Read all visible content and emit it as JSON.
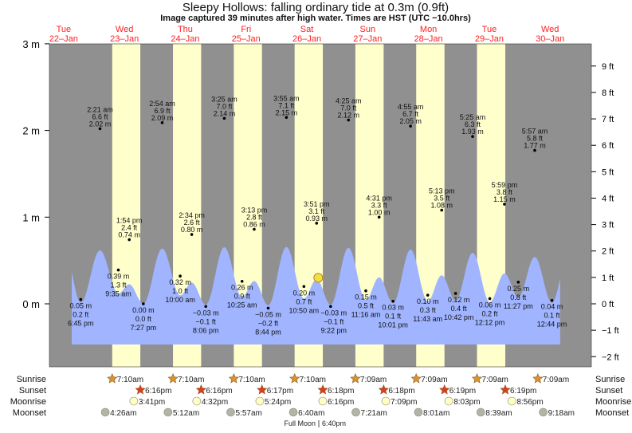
{
  "header": {
    "title": "Sleepy Hollows: falling  ordinary tide at 0.3m (0.9ft)",
    "subtitle": "Image captured 39 minutes after high water. Times are HST (UTC −10.0hrs)"
  },
  "colors": {
    "night": "#909090",
    "day": "#ffffcc",
    "water": "#a0b4ff",
    "day_label": "#ff2020",
    "sunrise": "#e0902c",
    "sunset": "#e03a20",
    "moonrise": "#ffffc0",
    "moonset": "#b4b4a4",
    "marker": "#f0e040"
  },
  "chart_data": {
    "type": "area",
    "title": "Sleepy Hollows: falling  ordinary tide at 0.3m (0.9ft)",
    "ylabel_left": "m",
    "ylabel_right": "ft",
    "ylim_m": [
      -0.73,
      3
    ],
    "yticks_m": [
      "3 m",
      "2 m",
      "1 m",
      "0 m"
    ],
    "yticks_m_values": [
      3,
      2,
      1,
      0
    ],
    "yticks_ft": [
      "9 ft",
      "8 ft",
      "7 ft",
      "6 ft",
      "5 ft",
      "4 ft",
      "3 ft",
      "2 ft",
      "1 ft",
      "0 ft",
      "−1 ft",
      "−2 ft"
    ],
    "yticks_ft_values": [
      9,
      8,
      7,
      6,
      5,
      4,
      3,
      2,
      1,
      0,
      -1,
      -2
    ],
    "days": [
      {
        "name": "Tue",
        "date": "22–Jan"
      },
      {
        "name": "Wed",
        "date": "23–Jan"
      },
      {
        "name": "Thu",
        "date": "24–Jan"
      },
      {
        "name": "Fri",
        "date": "25–Jan"
      },
      {
        "name": "Sat",
        "date": "26–Jan"
      },
      {
        "name": "Sun",
        "date": "27–Jan"
      },
      {
        "name": "Mon",
        "date": "28–Jan"
      },
      {
        "name": "Tue",
        "date": "29–Jan"
      },
      {
        "name": "Wed",
        "date": "30–Jan"
      }
    ],
    "extremes": [
      {
        "type": "low",
        "day": 0,
        "time": "6:45 pm",
        "m": "0.05 m",
        "ft": "0.2 ft",
        "value": 0.05
      },
      {
        "type": "high",
        "day": 1,
        "time": "2:21 am",
        "m": "2.02 m",
        "ft": "6.6 ft",
        "value": 2.02
      },
      {
        "type": "low",
        "day": 1,
        "time": "9:35 am",
        "m": "0.39 m",
        "ft": "1.3 ft",
        "value": 0.39
      },
      {
        "type": "high",
        "day": 1,
        "time": "1:54 pm",
        "m": "0.74 m",
        "ft": "2.4 ft",
        "value": 0.74
      },
      {
        "type": "low",
        "day": 1,
        "time": "7:27 pm",
        "m": "0.00 m",
        "ft": "0.0 ft",
        "value": 0.0
      },
      {
        "type": "high",
        "day": 2,
        "time": "2:54 am",
        "m": "2.09 m",
        "ft": "6.9 ft",
        "value": 2.09
      },
      {
        "type": "low",
        "day": 2,
        "time": "10:00 am",
        "m": "0.32 m",
        "ft": "1.0 ft",
        "value": 0.32
      },
      {
        "type": "high",
        "day": 2,
        "time": "2:34 pm",
        "m": "0.80 m",
        "ft": "2.6 ft",
        "value": 0.8
      },
      {
        "type": "low",
        "day": 2,
        "time": "8:06 pm",
        "m": "−0.03 m",
        "ft": "−0.1 ft",
        "value": -0.03
      },
      {
        "type": "high",
        "day": 3,
        "time": "3:25 am",
        "m": "2.14 m",
        "ft": "7.0 ft",
        "value": 2.14
      },
      {
        "type": "low",
        "day": 3,
        "time": "10:25 am",
        "m": "0.26 m",
        "ft": "0.9 ft",
        "value": 0.26
      },
      {
        "type": "high",
        "day": 3,
        "time": "3:13 pm",
        "m": "0.86 m",
        "ft": "2.8 ft",
        "value": 0.86
      },
      {
        "type": "low",
        "day": 3,
        "time": "8:44 pm",
        "m": "−0.05 m",
        "ft": "−0.2 ft",
        "value": -0.05
      },
      {
        "type": "high",
        "day": 4,
        "time": "3:55 am",
        "m": "2.15 m",
        "ft": "7.1 ft",
        "value": 2.15
      },
      {
        "type": "low",
        "day": 4,
        "time": "10:50 am",
        "m": "0.20 m",
        "ft": "0.7 ft",
        "value": 0.2
      },
      {
        "type": "high",
        "day": 4,
        "time": "3:51 pm",
        "m": "0.93 m",
        "ft": "3.1 ft",
        "value": 0.93
      },
      {
        "type": "low",
        "day": 4,
        "time": "9:22 pm",
        "m": "−0.03 m",
        "ft": "−0.1 ft",
        "value": -0.03
      },
      {
        "type": "high",
        "day": 5,
        "time": "4:25 am",
        "m": "2.12 m",
        "ft": "7.0 ft",
        "value": 2.12
      },
      {
        "type": "low",
        "day": 5,
        "time": "11:16 am",
        "m": "0.15 m",
        "ft": "0.5 ft",
        "value": 0.15
      },
      {
        "type": "high",
        "day": 5,
        "time": "4:31 pm",
        "m": "1.00 m",
        "ft": "3.3 ft",
        "value": 1.0
      },
      {
        "type": "low",
        "day": 5,
        "time": "10:01 pm",
        "m": "0.03 m",
        "ft": "0.1 ft",
        "value": 0.03
      },
      {
        "type": "high",
        "day": 6,
        "time": "4:55 am",
        "m": "2.05 m",
        "ft": "6.7 ft",
        "value": 2.05
      },
      {
        "type": "low",
        "day": 6,
        "time": "11:43 am",
        "m": "0.10 m",
        "ft": "0.3 ft",
        "value": 0.1
      },
      {
        "type": "high",
        "day": 6,
        "time": "5:13 pm",
        "m": "1.08 m",
        "ft": "3.5 ft",
        "value": 1.08
      },
      {
        "type": "low",
        "day": 6,
        "time": "10:42 pm",
        "m": "0.12 m",
        "ft": "0.4 ft",
        "value": 0.12
      },
      {
        "type": "high",
        "day": 7,
        "time": "5:25 am",
        "m": "1.93 m",
        "ft": "6.3 ft",
        "value": 1.93
      },
      {
        "type": "low",
        "day": 7,
        "time": "12:12 pm",
        "m": "0.06 m",
        "ft": "0.2 ft",
        "value": 0.06
      },
      {
        "type": "high",
        "day": 7,
        "time": "5:59 pm",
        "m": "1.15 m",
        "ft": "3.8 ft",
        "value": 1.15
      },
      {
        "type": "low",
        "day": 7,
        "time": "11:27 pm",
        "m": "0.25 m",
        "ft": "0.8 ft",
        "value": 0.25
      },
      {
        "type": "high",
        "day": 8,
        "time": "5:57 am",
        "m": "1.77 m",
        "ft": "5.8 ft",
        "value": 1.77
      },
      {
        "type": "low",
        "day": 8,
        "time": "12:44 pm",
        "m": "0.04 m",
        "ft": "0.1 ft",
        "value": 0.04
      }
    ],
    "current": {
      "day": 4,
      "time": "4:30 pm",
      "value_m": 0.3
    },
    "sun_moon": {
      "labels": {
        "sunrise": "Sunrise",
        "sunset": "Sunset",
        "moonrise": "Moonrise",
        "moonset": "Moonset"
      },
      "sunrise": [
        {
          "day": 1,
          "time": "7:10am"
        },
        {
          "day": 2,
          "time": "7:10am"
        },
        {
          "day": 3,
          "time": "7:10am"
        },
        {
          "day": 4,
          "time": "7:10am"
        },
        {
          "day": 5,
          "time": "7:09am"
        },
        {
          "day": 6,
          "time": "7:09am"
        },
        {
          "day": 7,
          "time": "7:09am"
        },
        {
          "day": 8,
          "time": "7:09am"
        }
      ],
      "sunset": [
        {
          "day": 1,
          "time": "6:16pm"
        },
        {
          "day": 2,
          "time": "6:16pm"
        },
        {
          "day": 3,
          "time": "6:17pm"
        },
        {
          "day": 4,
          "time": "6:18pm"
        },
        {
          "day": 5,
          "time": "6:18pm"
        },
        {
          "day": 6,
          "time": "6:19pm"
        },
        {
          "day": 7,
          "time": "6:19pm"
        }
      ],
      "moonrise": [
        {
          "day": 1,
          "time": "3:41pm"
        },
        {
          "day": 2,
          "time": "4:32pm"
        },
        {
          "day": 3,
          "time": "5:24pm"
        },
        {
          "day": 4,
          "time": "6:16pm"
        },
        {
          "day": 5,
          "time": "7:09pm"
        },
        {
          "day": 6,
          "time": "8:03pm"
        },
        {
          "day": 7,
          "time": "8:56pm"
        }
      ],
      "moonset": [
        {
          "day": 1,
          "time": "4:26am"
        },
        {
          "day": 2,
          "time": "5:12am"
        },
        {
          "day": 3,
          "time": "5:57am"
        },
        {
          "day": 4,
          "time": "6:40am"
        },
        {
          "day": 5,
          "time": "7:21am"
        },
        {
          "day": 6,
          "time": "8:01am"
        },
        {
          "day": 7,
          "time": "8:39am"
        },
        {
          "day": 8,
          "time": "9:18am"
        }
      ],
      "full_moon": {
        "label": "Full Moon",
        "time": "6:40pm"
      }
    }
  }
}
